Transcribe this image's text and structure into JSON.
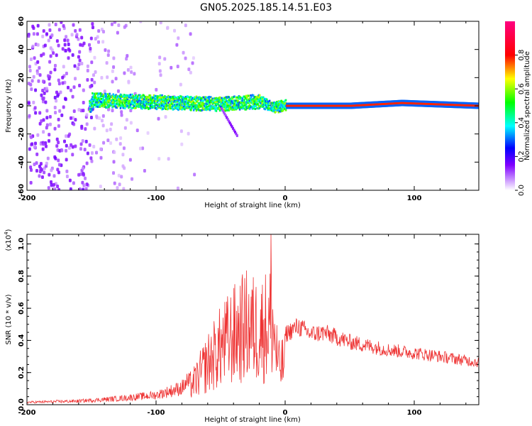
{
  "title": "GN05.2025.185.14.51.E03",
  "chart_data": [
    {
      "type": "heatmap",
      "xlabel": "Height of straight line (km)",
      "ylabel": "Frequency (Hz)",
      "xlim": [
        -200,
        150
      ],
      "ylim": [
        -60,
        60
      ],
      "xticks": [
        -200,
        -100,
        0,
        100
      ],
      "yticks": [
        -60,
        -40,
        -20,
        0,
        20,
        40,
        60
      ],
      "colorbar": {
        "label": "Normalized spectral amplitude",
        "range": [
          0,
          1
        ],
        "ticks": [
          "0.0",
          "0.2",
          "0.4",
          "0.6",
          "0.8"
        ],
        "colors": [
          "#ffffff",
          "#8000ff",
          "#0000ff",
          "#00ffff",
          "#00ff00",
          "#ffff00",
          "#ff0000",
          "#ff0080"
        ]
      },
      "ridge": {
        "description_points": [
          {
            "x": -150,
            "f": 4
          },
          {
            "x": -120,
            "f": 3
          },
          {
            "x": -80,
            "f": 2
          },
          {
            "x": -50,
            "f": 1
          },
          {
            "x": -20,
            "f": 3
          },
          {
            "x": -10,
            "f": -1
          },
          {
            "x": 0,
            "f": 0
          },
          {
            "x": 50,
            "f": 0
          },
          {
            "x": 90,
            "f": 2
          },
          {
            "x": 150,
            "f": 0
          }
        ]
      }
    },
    {
      "type": "line",
      "xlabel": "Height of straight line (km)",
      "ylabel": "SNR (10 * v/v)",
      "yscale_label": "(x10",
      "yscale_exp": "4",
      "xlim": [
        -200,
        150
      ],
      "ylim": [
        0,
        1.06
      ],
      "xticks": [
        -200,
        -100,
        0,
        100
      ],
      "yticks": [
        "0.0",
        "0.2",
        "0.4",
        "0.6",
        "0.8",
        "1.0"
      ],
      "color": "#ee3333",
      "envelope": [
        {
          "x": -200,
          "y": 0.02
        },
        {
          "x": -160,
          "y": 0.03
        },
        {
          "x": -130,
          "y": 0.05
        },
        {
          "x": -100,
          "y": 0.08
        },
        {
          "x": -80,
          "y": 0.14
        },
        {
          "x": -70,
          "y": 0.25
        },
        {
          "x": -60,
          "y": 0.45
        },
        {
          "x": -50,
          "y": 0.62
        },
        {
          "x": -40,
          "y": 0.75
        },
        {
          "x": -30,
          "y": 0.85
        },
        {
          "x": -20,
          "y": 0.8
        },
        {
          "x": -10,
          "y": 0.9
        },
        {
          "x": -5,
          "y": 0.4
        },
        {
          "x": 0,
          "y": 0.45
        },
        {
          "x": 10,
          "y": 0.5
        },
        {
          "x": 20,
          "y": 0.45
        },
        {
          "x": 30,
          "y": 0.46
        },
        {
          "x": 50,
          "y": 0.4
        },
        {
          "x": 80,
          "y": 0.35
        },
        {
          "x": 110,
          "y": 0.32
        },
        {
          "x": 150,
          "y": 0.27
        }
      ],
      "peak": {
        "x": -11,
        "y": 1.06
      }
    }
  ]
}
